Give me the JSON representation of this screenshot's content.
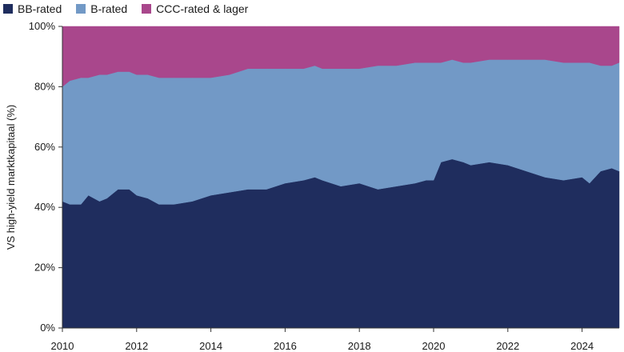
{
  "chart_data": {
    "type": "area",
    "stacked": true,
    "ylabel": "VS high-yield marktkapitaal (%)",
    "xlabel": "",
    "ylim": [
      0,
      100
    ],
    "xlim": [
      2010,
      2025
    ],
    "x_ticks": [
      "2010",
      "2012",
      "2014",
      "2016",
      "2018",
      "2020",
      "2022",
      "2024"
    ],
    "y_ticks": [
      "0%",
      "20%",
      "40%",
      "60%",
      "80%",
      "100%"
    ],
    "legend_position": "top-left",
    "x": [
      2010.0,
      2010.2,
      2010.5,
      2010.7,
      2011.0,
      2011.2,
      2011.5,
      2011.8,
      2012.0,
      2012.3,
      2012.6,
      2013.0,
      2013.5,
      2014.0,
      2014.5,
      2015.0,
      2015.5,
      2016.0,
      2016.5,
      2016.8,
      2017.0,
      2017.5,
      2018.0,
      2018.5,
      2019.0,
      2019.5,
      2019.8,
      2020.0,
      2020.2,
      2020.5,
      2020.8,
      2021.0,
      2021.5,
      2022.0,
      2022.5,
      2023.0,
      2023.5,
      2024.0,
      2024.2,
      2024.5,
      2024.8,
      2025.0
    ],
    "series": [
      {
        "name": "BB-rated",
        "color": "#1f2d5e",
        "values": [
          42,
          41,
          41,
          44,
          42,
          43,
          46,
          46,
          44,
          43,
          41,
          41,
          42,
          44,
          45,
          46,
          46,
          48,
          49,
          50,
          49,
          47,
          48,
          46,
          47,
          48,
          49,
          49,
          55,
          56,
          55,
          54,
          55,
          54,
          52,
          50,
          49,
          50,
          48,
          52,
          53,
          52
        ]
      },
      {
        "name": "B-rated",
        "color": "#7299c6",
        "values": [
          38,
          41,
          42,
          39,
          42,
          41,
          39,
          39,
          40,
          41,
          42,
          42,
          41,
          39,
          39,
          40,
          40,
          38,
          37,
          37,
          37,
          39,
          38,
          41,
          40,
          40,
          39,
          39,
          33,
          33,
          33,
          34,
          34,
          35,
          37,
          39,
          39,
          38,
          40,
          35,
          34,
          36
        ]
      },
      {
        "name": "CCC-rated & lager",
        "color": "#a9478c",
        "values": [
          20,
          18,
          17,
          17,
          16,
          16,
          15,
          15,
          16,
          16,
          17,
          17,
          17,
          17,
          16,
          14,
          14,
          14,
          14,
          13,
          14,
          14,
          14,
          13,
          13,
          12,
          12,
          12,
          12,
          11,
          12,
          12,
          11,
          11,
          11,
          11,
          12,
          12,
          12,
          13,
          13,
          12
        ]
      }
    ]
  }
}
